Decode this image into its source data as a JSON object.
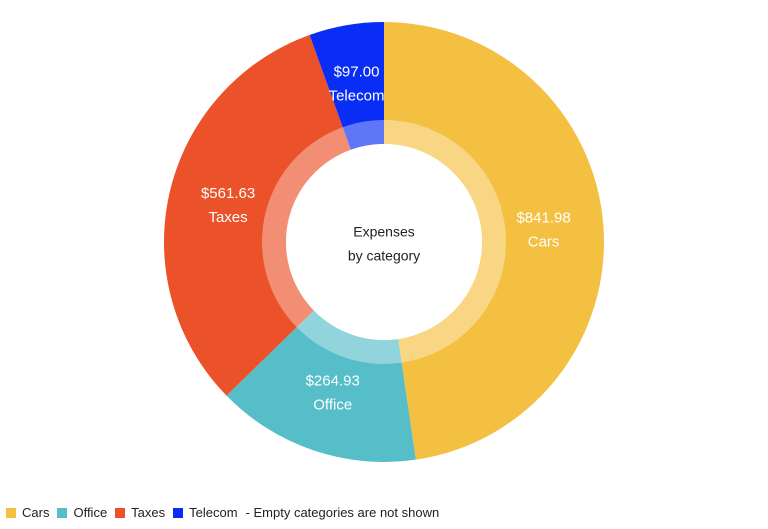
{
  "chart_data": {
    "type": "pie",
    "center_text": [
      "Expenses",
      "by category"
    ],
    "categories": [
      "Cars",
      "Office",
      "Taxes",
      "Telecom"
    ],
    "values": [
      841.98,
      264.93,
      561.63,
      97.0
    ],
    "value_labels": [
      "$841.98",
      "$264.93",
      "$561.63",
      "$97.00"
    ],
    "colors": [
      "#f4c042",
      "#56bec9",
      "#eb5229",
      "#0a2df5"
    ],
    "note": "- Empty categories are not shown"
  }
}
